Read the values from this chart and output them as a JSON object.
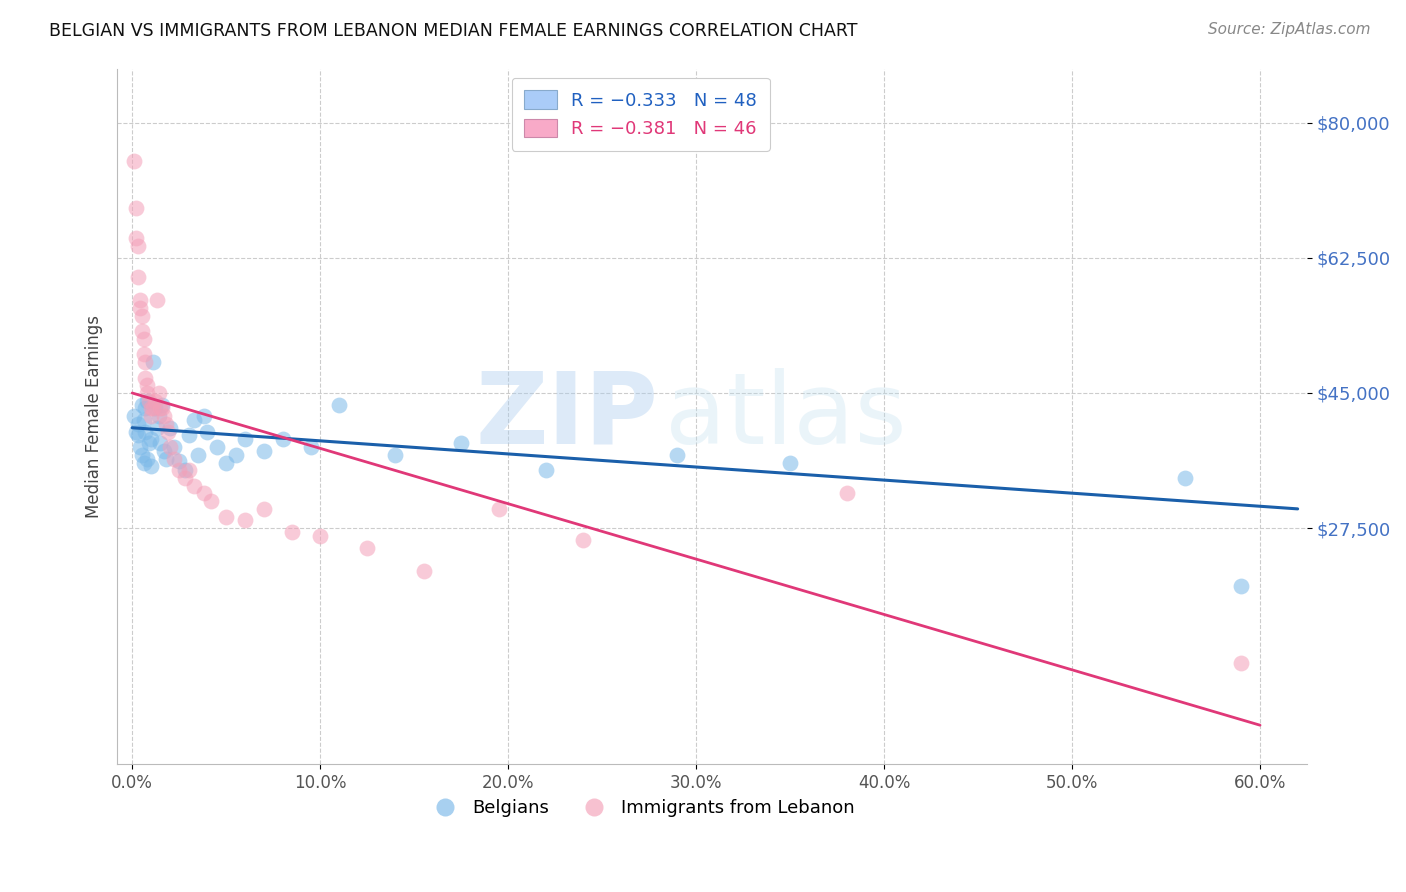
{
  "title": "BELGIAN VS IMMIGRANTS FROM LEBANON MEDIAN FEMALE EARNINGS CORRELATION CHART",
  "source": "Source: ZipAtlas.com",
  "ylabel": "Median Female Earnings",
  "ytick_values": [
    27500,
    45000,
    62500,
    80000
  ],
  "ytick_labels": [
    "$27,500",
    "$45,000",
    "$62,500",
    "$80,000"
  ],
  "xtick_vals": [
    0.0,
    0.1,
    0.2,
    0.3,
    0.4,
    0.5,
    0.6
  ],
  "xtick_labels": [
    "0.0%",
    "10.0%",
    "20.0%",
    "30.0%",
    "40.0%",
    "50.0%",
    "60.0%"
  ],
  "xlim": [
    -0.008,
    0.625
  ],
  "ylim": [
    -3000,
    87000
  ],
  "blue_color": "#7ab8e8",
  "pink_color": "#f4a0b8",
  "trend_blue": "#1a5faa",
  "trend_pink": "#e03878",
  "legend_label1": "R = −0.333   N = 48",
  "legend_label2": "R = −0.381   N = 46",
  "legend_patch1": "#aaccf8",
  "legend_patch2": "#f8aac8",
  "legend_text_color1": "#2060c0",
  "legend_text_color2": "#e03878",
  "legend_bottom": [
    "Belgians",
    "Immigrants from Lebanon"
  ],
  "belgians_x": [
    0.001,
    0.002,
    0.003,
    0.003,
    0.004,
    0.005,
    0.005,
    0.006,
    0.006,
    0.007,
    0.007,
    0.008,
    0.008,
    0.009,
    0.01,
    0.01,
    0.011,
    0.012,
    0.013,
    0.014,
    0.015,
    0.016,
    0.017,
    0.018,
    0.02,
    0.022,
    0.025,
    0.028,
    0.03,
    0.033,
    0.035,
    0.038,
    0.04,
    0.045,
    0.05,
    0.055,
    0.06,
    0.07,
    0.08,
    0.095,
    0.11,
    0.14,
    0.175,
    0.22,
    0.29,
    0.35,
    0.56,
    0.59
  ],
  "belgians_y": [
    42000,
    40000,
    41000,
    39500,
    38000,
    43500,
    37000,
    41500,
    36000,
    43000,
    40000,
    36500,
    44000,
    38500,
    35500,
    39000,
    49000,
    43000,
    40500,
    42000,
    38500,
    43500,
    37500,
    36500,
    40500,
    38000,
    36200,
    35000,
    39500,
    41500,
    37000,
    42000,
    40000,
    38000,
    36000,
    37000,
    39000,
    37500,
    39000,
    38000,
    43500,
    37000,
    38500,
    35000,
    37000,
    36000,
    34000,
    20000
  ],
  "lebanon_x": [
    0.001,
    0.002,
    0.002,
    0.003,
    0.003,
    0.004,
    0.004,
    0.005,
    0.005,
    0.006,
    0.006,
    0.007,
    0.007,
    0.008,
    0.008,
    0.009,
    0.01,
    0.01,
    0.011,
    0.012,
    0.013,
    0.014,
    0.015,
    0.016,
    0.017,
    0.018,
    0.019,
    0.02,
    0.022,
    0.025,
    0.028,
    0.03,
    0.033,
    0.038,
    0.042,
    0.05,
    0.06,
    0.07,
    0.085,
    0.1,
    0.125,
    0.155,
    0.195,
    0.24,
    0.38,
    0.59
  ],
  "lebanon_y": [
    75000,
    69000,
    65000,
    64000,
    60000,
    57000,
    56000,
    55000,
    53000,
    52000,
    50000,
    49000,
    47000,
    46000,
    45000,
    44000,
    43000,
    42000,
    43000,
    44000,
    57000,
    45000,
    43000,
    43000,
    42000,
    41000,
    40000,
    38000,
    36500,
    35000,
    34000,
    35000,
    33000,
    32000,
    31000,
    29000,
    28500,
    30000,
    27000,
    26500,
    25000,
    22000,
    30000,
    26000,
    32000,
    10000
  ],
  "trend_blue_x0": 0.0,
  "trend_blue_x1": 0.62,
  "trend_blue_y0": 40500,
  "trend_blue_y1": 30000,
  "trend_pink_x0": 0.0,
  "trend_pink_x1": 0.6,
  "trend_pink_y0": 45000,
  "trend_pink_y1": 2000
}
